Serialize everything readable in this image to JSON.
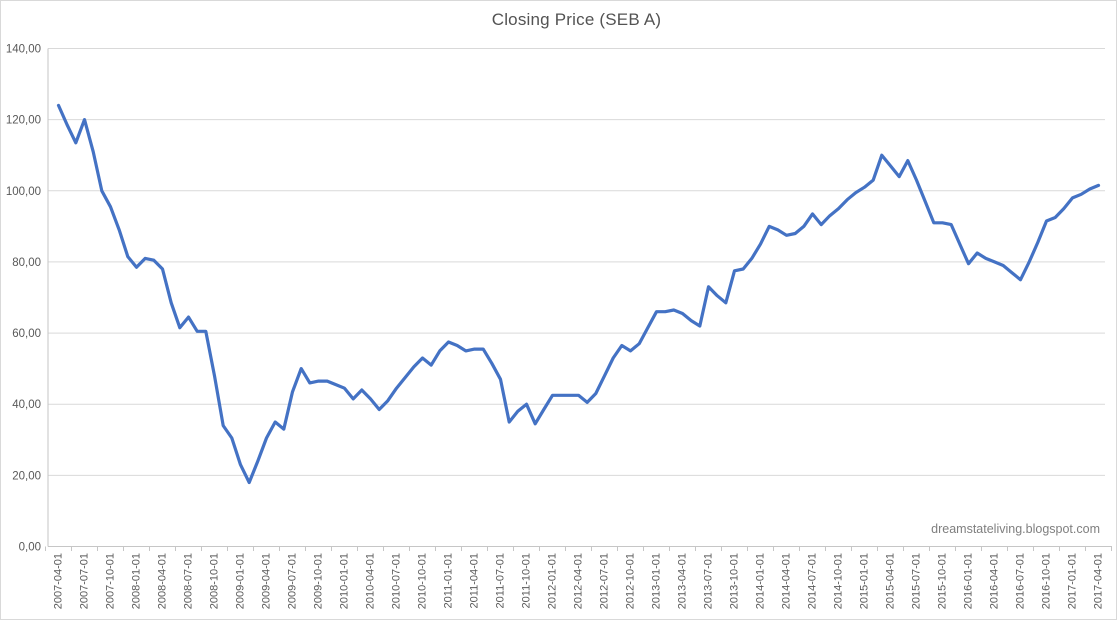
{
  "chart_title": "Closing Price (SEB A)",
  "watermark": "dreamstateliving.blogspot.com",
  "colors": {
    "line": "#4472C4",
    "gridline": "#d9d9d9",
    "axis": "#c6c6c6",
    "label_text": "#595959",
    "title_text": "#535353",
    "frame_border": "#d9d9d9",
    "background": "#ffffff"
  },
  "chart_data": {
    "type": "line",
    "title": "Closing Price (SEB A)",
    "legend": "none",
    "grid": "horizontal",
    "x_start": "2007-04-01",
    "x_interval": "monthly",
    "x_tick_interval": "quarterly",
    "ylim": [
      0,
      140
    ],
    "line_color": "#4472C4",
    "gridline_color": "#d9d9d9",
    "axis_color": "#c6c6c6",
    "y_ticks": [
      {
        "value": 0,
        "label": "0,00"
      },
      {
        "value": 20,
        "label": "20,00"
      },
      {
        "value": 40,
        "label": "40,00"
      },
      {
        "value": 60,
        "label": "60,00"
      },
      {
        "value": 80,
        "label": "80,00"
      },
      {
        "value": 100,
        "label": "100,00"
      },
      {
        "value": 120,
        "label": "120,00"
      },
      {
        "value": 140,
        "label": "140,00"
      }
    ],
    "categories": [
      "2007-04-01",
      "2007-07-01",
      "2007-10-01",
      "2008-01-01",
      "2008-04-01",
      "2008-07-01",
      "2008-10-01",
      "2009-01-01",
      "2009-04-01",
      "2009-07-01",
      "2009-10-01",
      "2010-01-01",
      "2010-04-01",
      "2010-07-01",
      "2010-10-01",
      "2011-01-01",
      "2011-04-01",
      "2011-07-01",
      "2011-10-01",
      "2012-01-01",
      "2012-04-01",
      "2012-07-01",
      "2012-10-01",
      "2013-01-01",
      "2013-04-01",
      "2013-07-01",
      "2013-10-01",
      "2014-01-01",
      "2014-04-01",
      "2014-07-01",
      "2014-10-01",
      "2015-01-01",
      "2015-04-01",
      "2015-07-01",
      "2015-10-01",
      "2016-01-01",
      "2016-04-01",
      "2016-07-01",
      "2016-10-01",
      "2017-01-01",
      "2017-04-01"
    ],
    "values": [
      124,
      118.5,
      113.5,
      120,
      111,
      100,
      95.5,
      89,
      81.5,
      78.5,
      81,
      80.5,
      78,
      68.5,
      61.5,
      64.5,
      60.5,
      60.5,
      48,
      34,
      30.5,
      23,
      18,
      24,
      30.5,
      35,
      33,
      43.5,
      50,
      46,
      46.5,
      46.5,
      45.5,
      44.5,
      41.5,
      44,
      41.5,
      38.5,
      41,
      44.5,
      47.5,
      50.5,
      53,
      51,
      55,
      57.5,
      56.5,
      55,
      55.5,
      55.5,
      51.5,
      47,
      35,
      38,
      40,
      34.5,
      38.5,
      42.5,
      42.5,
      42.5,
      42.5,
      40.5,
      43,
      48,
      53,
      56.5,
      55,
      57,
      61.5,
      66,
      66,
      66.5,
      65.5,
      63.5,
      62,
      73,
      70.5,
      68.5,
      77.5,
      78,
      81,
      85,
      90,
      89,
      87.5,
      88,
      90,
      93.5,
      90.5,
      93,
      95,
      97.5,
      99.5,
      101,
      103,
      110,
      107,
      104,
      108.5,
      103,
      97,
      91,
      91,
      90.5,
      85,
      79.5,
      82.5,
      81,
      80,
      79,
      77,
      75,
      80,
      85.5,
      91.5,
      92.5,
      95,
      98,
      99,
      100.5,
      101.5
    ]
  }
}
